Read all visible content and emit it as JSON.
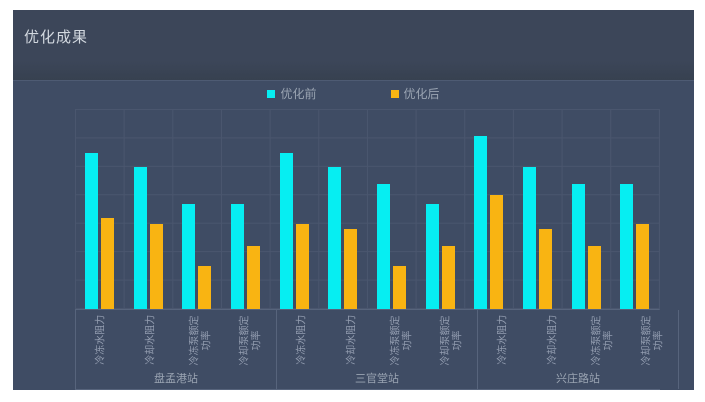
{
  "header": {
    "title": "优化成果"
  },
  "legend": {
    "items": [
      {
        "label": "优化前",
        "color": "#06eef2"
      },
      {
        "label": "优化后",
        "color": "#f9b412"
      }
    ]
  },
  "chart_data": {
    "type": "bar",
    "title": "优化成果",
    "legend_position": "top-center",
    "grid": true,
    "yaxis_tick_labels": "none",
    "ylim": [
      0,
      70
    ],
    "grid_interval": 10,
    "xlabel": "",
    "ylabel": "",
    "groups": [
      "盘孟港站",
      "三官堂站",
      "兴庄路站"
    ],
    "categories": [
      "冷冻水阻力",
      "冷却水阻力",
      "冷冻泵额定功率",
      "冷却泵额定功率"
    ],
    "categories_display": [
      "冷冻水阻力",
      "冷却水阻力",
      "冷冻泵额定\n功率",
      "冷却泵额定\n功率"
    ],
    "series": [
      {
        "name": "优化前",
        "color": "#06eef2",
        "values": [
          [
            55,
            50,
            37,
            37
          ],
          [
            55,
            50,
            44,
            37
          ],
          [
            61,
            50,
            44,
            44
          ]
        ]
      },
      {
        "name": "优化后",
        "color": "#f9b412",
        "values": [
          [
            32,
            30,
            15,
            22
          ],
          [
            30,
            28,
            15,
            22
          ],
          [
            40,
            28,
            22,
            30
          ]
        ]
      }
    ]
  }
}
